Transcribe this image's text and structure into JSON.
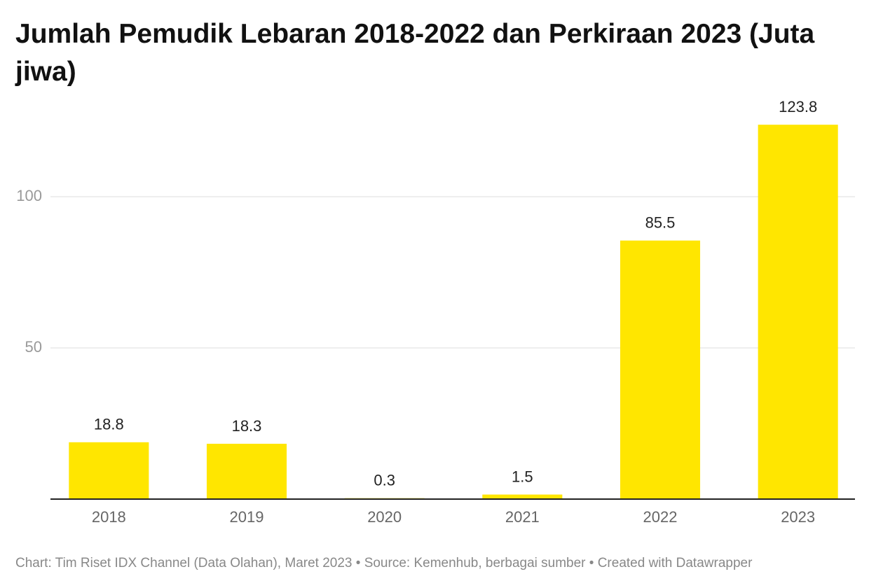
{
  "chart_data": {
    "type": "bar",
    "title": "Jumlah Pemudik Lebaran 2018-2022 dan Perkiraan 2023 (Juta jiwa)",
    "categories": [
      "2018",
      "2019",
      "2020",
      "2021",
      "2022",
      "2023"
    ],
    "values": [
      18.8,
      18.3,
      0.3,
      1.5,
      85.5,
      123.8
    ],
    "color": "#ffe600",
    "ylim": [
      0,
      125
    ],
    "yticks": [
      50,
      100
    ],
    "grid": true,
    "footer": "Chart: Tim Riset IDX Channel (Data Olahan), Maret 2023 • Source: Kemenhub, berbagai sumber • Created with Datawrapper"
  }
}
